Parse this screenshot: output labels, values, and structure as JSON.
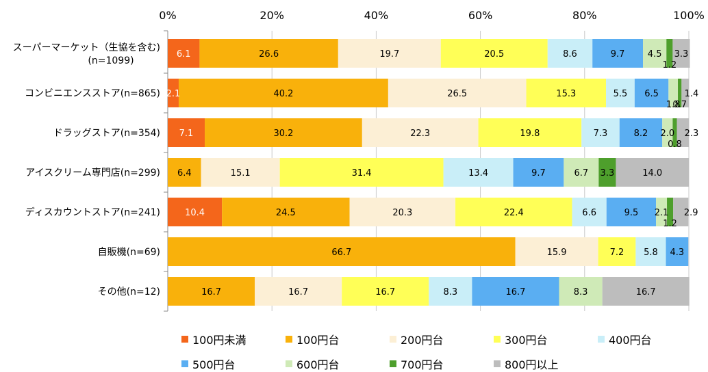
{
  "chart_data": {
    "type": "bar",
    "orientation": "horizontal",
    "stacked": true,
    "xlim": [
      0,
      100
    ],
    "x_ticks": [
      "0%",
      "20%",
      "40%",
      "60%",
      "80%",
      "100%"
    ],
    "categories": [
      [
        "スーパーマーケット（生協を含む)",
        "(n=1099)"
      ],
      [
        "コンビニエンスストア(n=865)"
      ],
      [
        "ドラッグストア(n=354)"
      ],
      [
        "アイスクリーム専門店(n=299)"
      ],
      [
        "ディスカウントストア(n=241)"
      ],
      [
        "自販機(n=69)"
      ],
      [
        "その他(n=12)"
      ]
    ],
    "series": [
      {
        "name": "100円未満",
        "color": "#F4661B",
        "values": [
          6.1,
          2.1,
          7.1,
          0,
          10.4,
          0,
          0
        ]
      },
      {
        "name": "100円台",
        "color": "#F9B10B",
        "values": [
          26.6,
          40.2,
          30.2,
          6.4,
          24.5,
          66.7,
          16.7
        ]
      },
      {
        "name": "200円台",
        "color": "#FCEFD5",
        "values": [
          19.7,
          26.5,
          22.3,
          15.1,
          20.3,
          15.9,
          16.7
        ]
      },
      {
        "name": "300円台",
        "color": "#FFFF57",
        "values": [
          20.5,
          15.3,
          19.8,
          31.4,
          22.4,
          7.2,
          16.7
        ]
      },
      {
        "name": "400円台",
        "color": "#C9EEF8",
        "values": [
          8.6,
          5.5,
          7.3,
          13.4,
          6.6,
          5.8,
          8.3
        ]
      },
      {
        "name": "500円台",
        "color": "#5AAEF2",
        "values": [
          9.7,
          6.5,
          8.2,
          9.7,
          9.5,
          4.3,
          16.7
        ]
      },
      {
        "name": "600円台",
        "color": "#CFEAB7",
        "values": [
          4.5,
          1.8,
          2.0,
          6.7,
          2.1,
          0,
          8.3
        ]
      },
      {
        "name": "700円台",
        "color": "#4E9F2C",
        "values": [
          1.2,
          0.7,
          0.8,
          3.3,
          1.2,
          0,
          0
        ]
      },
      {
        "name": "800円以上",
        "color": "#BDBDBD",
        "values": [
          3.3,
          1.4,
          2.3,
          14.0,
          2.9,
          0,
          16.7
        ]
      }
    ],
    "grid": true,
    "legend_position": "bottom"
  }
}
